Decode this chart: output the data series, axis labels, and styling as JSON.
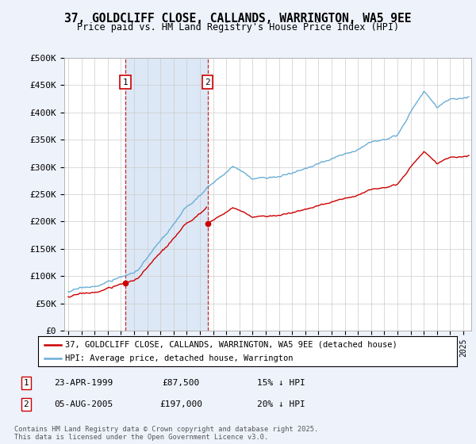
{
  "title": "37, GOLDCLIFF CLOSE, CALLANDS, WARRINGTON, WA5 9EE",
  "subtitle": "Price paid vs. HM Land Registry's House Price Index (HPI)",
  "ylim": [
    0,
    500000
  ],
  "yticks": [
    0,
    50000,
    100000,
    150000,
    200000,
    250000,
    300000,
    350000,
    400000,
    450000,
    500000
  ],
  "ytick_labels": [
    "£0",
    "£50K",
    "£100K",
    "£150K",
    "£200K",
    "£250K",
    "£300K",
    "£350K",
    "£400K",
    "£450K",
    "£500K"
  ],
  "hpi_color": "#6baed6",
  "price_color": "#cc0000",
  "sale1_year": 1999.31,
  "sale1_price": 87500,
  "sale2_year": 2005.59,
  "sale2_price": 197000,
  "legend_label_price": "37, GOLDCLIFF CLOSE, CALLANDS, WARRINGTON, WA5 9EE (detached house)",
  "legend_label_hpi": "HPI: Average price, detached house, Warrington",
  "annotation1_date": "23-APR-1999",
  "annotation1_price": "£87,500",
  "annotation1_hpi": "15% ↓ HPI",
  "annotation2_date": "05-AUG-2005",
  "annotation2_price": "£197,000",
  "annotation2_hpi": "20% ↓ HPI",
  "footer": "Contains HM Land Registry data © Crown copyright and database right 2025.\nThis data is licensed under the Open Government Licence v3.0.",
  "background_color": "#eef2fb",
  "plot_bg_color": "#ffffff",
  "grid_color": "#cccccc",
  "shade_color": "#dce8f5"
}
